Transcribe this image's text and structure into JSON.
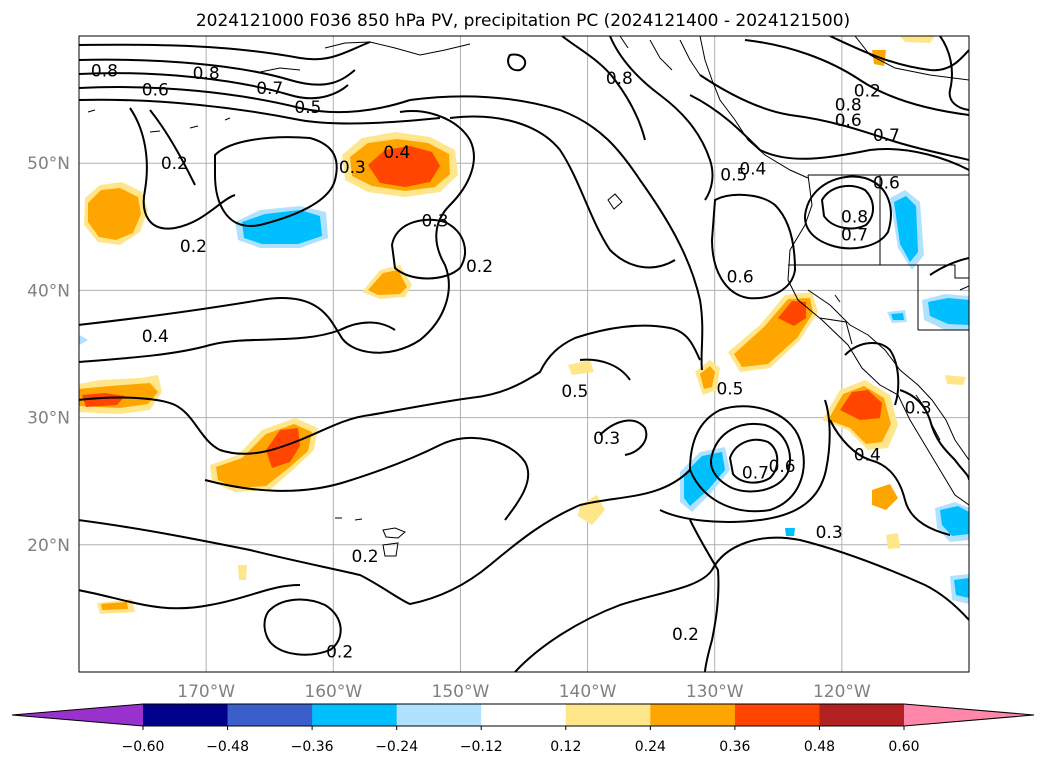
{
  "title": "2024121000 F036 850 hPa PV, precipitation PC (2024121400 - 2024121500)",
  "map": {
    "lon_range": [
      -180,
      -110
    ],
    "lat_range": [
      10,
      60
    ],
    "lon_ticks": [
      {
        "lon": -170,
        "label": "170°W"
      },
      {
        "lon": -160,
        "label": "160°W"
      },
      {
        "lon": -150,
        "label": "150°W"
      },
      {
        "lon": -140,
        "label": "140°W"
      },
      {
        "lon": -130,
        "label": "130°W"
      },
      {
        "lon": -120,
        "label": "120°W"
      }
    ],
    "lat_ticks": [
      {
        "lat": 20,
        "label": "20°N"
      },
      {
        "lat": 30,
        "label": "30°N"
      },
      {
        "lat": 40,
        "label": "40°N"
      },
      {
        "lat": 50,
        "label": "50°N"
      }
    ],
    "grid": true,
    "colors": {
      "land_line": "#000000",
      "contour": "#000000",
      "grid": "#b0b0b0"
    }
  },
  "contour_labels": [
    {
      "text": "0.8",
      "lon": -178.0,
      "lat": 57.3
    },
    {
      "text": "0.8",
      "lon": -170.0,
      "lat": 57.1
    },
    {
      "text": "0.6",
      "lon": -174.0,
      "lat": 55.8
    },
    {
      "text": "0.7",
      "lon": -165.0,
      "lat": 55.9
    },
    {
      "text": "0.5",
      "lon": -162.0,
      "lat": 54.4
    },
    {
      "text": "0.4",
      "lon": -155.0,
      "lat": 50.9
    },
    {
      "text": "0.3",
      "lon": -158.5,
      "lat": 49.7
    },
    {
      "text": "0.2",
      "lon": -172.5,
      "lat": 50.0
    },
    {
      "text": "0.3",
      "lon": -152.0,
      "lat": 45.5
    },
    {
      "text": "0.2",
      "lon": -171.0,
      "lat": 43.5
    },
    {
      "text": "0.2",
      "lon": -148.5,
      "lat": 41.9
    },
    {
      "text": "0.4",
      "lon": -174.0,
      "lat": 36.4
    },
    {
      "text": "0.8",
      "lon": -137.5,
      "lat": 56.7
    },
    {
      "text": "0.5",
      "lon": -128.5,
      "lat": 49.1
    },
    {
      "text": "0.4",
      "lon": -127.0,
      "lat": 49.6
    },
    {
      "text": "0.6",
      "lon": -128.0,
      "lat": 41.1
    },
    {
      "text": "0.8",
      "lon": -119.0,
      "lat": 45.8
    },
    {
      "text": "0.7",
      "lon": -119.0,
      "lat": 44.4
    },
    {
      "text": "0.6",
      "lon": -116.5,
      "lat": 48.5
    },
    {
      "text": "0.8",
      "lon": -119.5,
      "lat": 54.6
    },
    {
      "text": "0.6",
      "lon": -119.5,
      "lat": 53.4
    },
    {
      "text": "0.7",
      "lon": -116.5,
      "lat": 52.2
    },
    {
      "text": "0.2",
      "lon": -118.0,
      "lat": 55.7
    },
    {
      "text": "0.5",
      "lon": -141.0,
      "lat": 32.1
    },
    {
      "text": "0.5",
      "lon": -128.8,
      "lat": 32.3
    },
    {
      "text": "0.3",
      "lon": -138.5,
      "lat": 28.4
    },
    {
      "text": "0.7",
      "lon": -126.8,
      "lat": 25.7
    },
    {
      "text": "0.6",
      "lon": -124.7,
      "lat": 26.2
    },
    {
      "text": "0.3",
      "lon": -121.0,
      "lat": 21.0
    },
    {
      "text": "0.4",
      "lon": -118.0,
      "lat": 27.1
    },
    {
      "text": "0.3",
      "lon": -114.0,
      "lat": 30.8
    },
    {
      "text": "0.2",
      "lon": -157.5,
      "lat": 19.1
    },
    {
      "text": "0.2",
      "lon": -159.5,
      "lat": 11.6
    },
    {
      "text": "0.2",
      "lon": -132.3,
      "lat": 13.0
    }
  ],
  "colorbar": {
    "ticks": [
      "−0.60",
      "−0.48",
      "−0.36",
      "−0.24",
      "−0.12",
      "0.12",
      "0.24",
      "0.36",
      "0.48",
      "0.60"
    ],
    "colors": [
      "#9932cc",
      "#00008b",
      "#3a5fcd",
      "#00bfff",
      "#b0e2ff",
      "#ffffff",
      "#ffe68a",
      "#ffa500",
      "#ff4500",
      "#b22222",
      "#ff88aa"
    ]
  }
}
